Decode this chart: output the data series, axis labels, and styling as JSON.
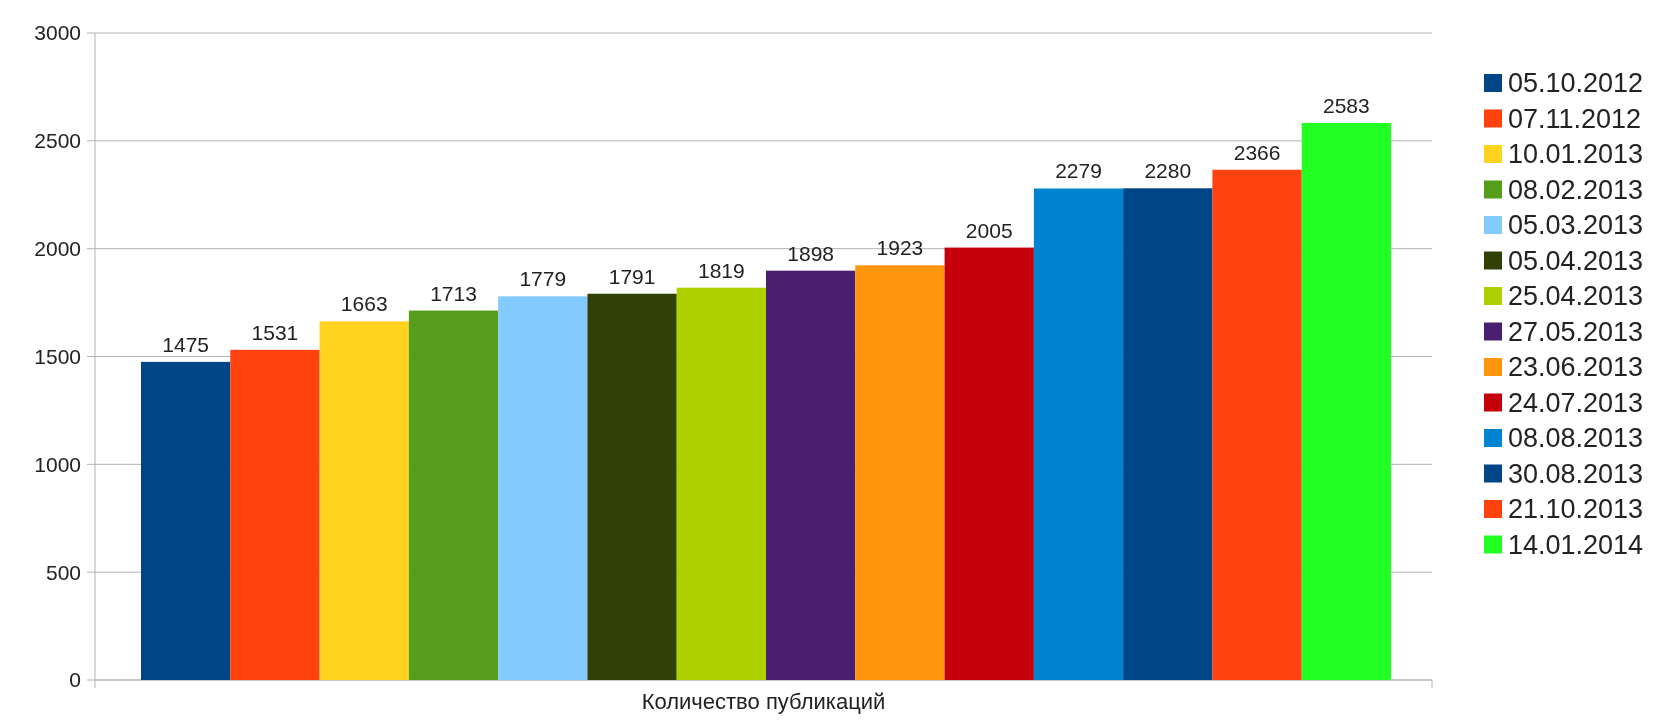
{
  "chart_data": {
    "type": "bar",
    "xlabel": "Количество публикаций",
    "categories": [
      null
    ],
    "ylim": [
      0,
      3000
    ],
    "yticks": [
      0,
      500,
      1000,
      1500,
      2000,
      2500,
      3000
    ],
    "grid": "y",
    "legend": "right",
    "data_labels": true,
    "series": [
      {
        "name": "05.10.2012",
        "color": "#004586",
        "values": [
          1475
        ]
      },
      {
        "name": "07.11.2012",
        "color": "#ff420e",
        "values": [
          1531
        ]
      },
      {
        "name": "10.01.2013",
        "color": "#ffd320",
        "values": [
          1663
        ]
      },
      {
        "name": "08.02.2013",
        "color": "#579d1c",
        "values": [
          1713
        ]
      },
      {
        "name": "05.03.2013",
        "color": "#83caff",
        "values": [
          1779
        ]
      },
      {
        "name": "05.04.2013",
        "color": "#314004",
        "values": [
          1791
        ]
      },
      {
        "name": "25.04.2013",
        "color": "#aecf00",
        "values": [
          1819
        ]
      },
      {
        "name": "27.05.2013",
        "color": "#4b1f6f",
        "values": [
          1898
        ]
      },
      {
        "name": "23.06.2013",
        "color": "#ff950e",
        "values": [
          1923
        ]
      },
      {
        "name": "24.07.2013",
        "color": "#c5000b",
        "values": [
          2005
        ]
      },
      {
        "name": "08.08.2013",
        "color": "#0084d1",
        "values": [
          2279
        ]
      },
      {
        "name": "30.08.2013",
        "color": "#004586",
        "values": [
          2280
        ]
      },
      {
        "name": "21.10.2013",
        "color": "#ff420e",
        "values": [
          2366
        ]
      },
      {
        "name": "14.01.2014",
        "color": "#22ff22",
        "values": [
          2583
        ]
      }
    ]
  }
}
